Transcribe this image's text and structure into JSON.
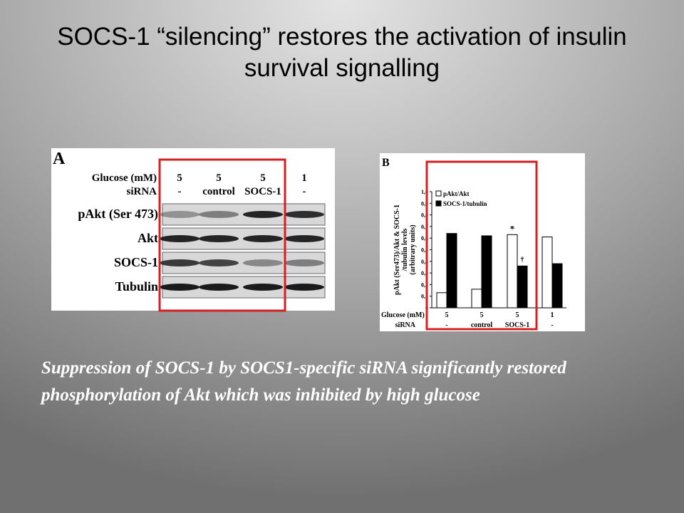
{
  "title": "SOCS-1 “silencing” restores the activation of insulin survival signalling",
  "panel_a": {
    "label": "A",
    "glucose_label": "Glucose (mM)",
    "sirna_label": "siRNA",
    "glucose": [
      "5",
      "5",
      "5",
      "1"
    ],
    "sirna": [
      "-",
      "control",
      "SOCS-1",
      "-"
    ],
    "blots": [
      "pAkt (Ser 473)",
      "Akt",
      "SOCS-1",
      "Tubulin"
    ]
  },
  "chart_data": {
    "type": "bar",
    "panel_label": "B",
    "y_label": [
      "pAkt (Ser473)/Akt & SOCS-1",
      "/tubulin levels",
      "(arbitrary units)"
    ],
    "glucose_label": "Glucose (mM)",
    "sirna_label": "siRNA",
    "glucose": [
      "5",
      "5",
      "5",
      "1"
    ],
    "categories": [
      "-",
      "control",
      "SOCS-1",
      "-"
    ],
    "series": [
      {
        "name": "pAkt/Akt",
        "color": "#ffffff",
        "values": [
          0.13,
          0.16,
          0.63,
          0.61
        ]
      },
      {
        "name": "SOCS-1/tubulin",
        "color": "#000000",
        "values": [
          0.64,
          0.62,
          0.36,
          0.38
        ]
      }
    ],
    "annotations": [
      "*",
      "†"
    ],
    "ylim": [
      0,
      1
    ],
    "yticks": [
      0,
      {
        "value": 0.1,
        "label": "0,1"
      },
      {
        "value": 0.2,
        "label": "0,2"
      },
      {
        "value": 0.3,
        "label": "0,3"
      },
      {
        "value": 0.4,
        "label": "0,4"
      },
      {
        "value": 0.5,
        "label": "0,5"
      },
      {
        "value": 0.6,
        "label": "0,6"
      },
      {
        "value": 0.7,
        "label": "0,7"
      },
      {
        "value": 0.8,
        "label": "0,8"
      },
      {
        "value": 0.9,
        "label": "0,9"
      },
      {
        "value": 1,
        "label": "1,0"
      }
    ],
    "legend": "top-left"
  },
  "caption": "Suppression of SOCS-1 by SOCS1-specific siRNA significantly restored phosphorylation of Akt which was inhibited by high glucose"
}
